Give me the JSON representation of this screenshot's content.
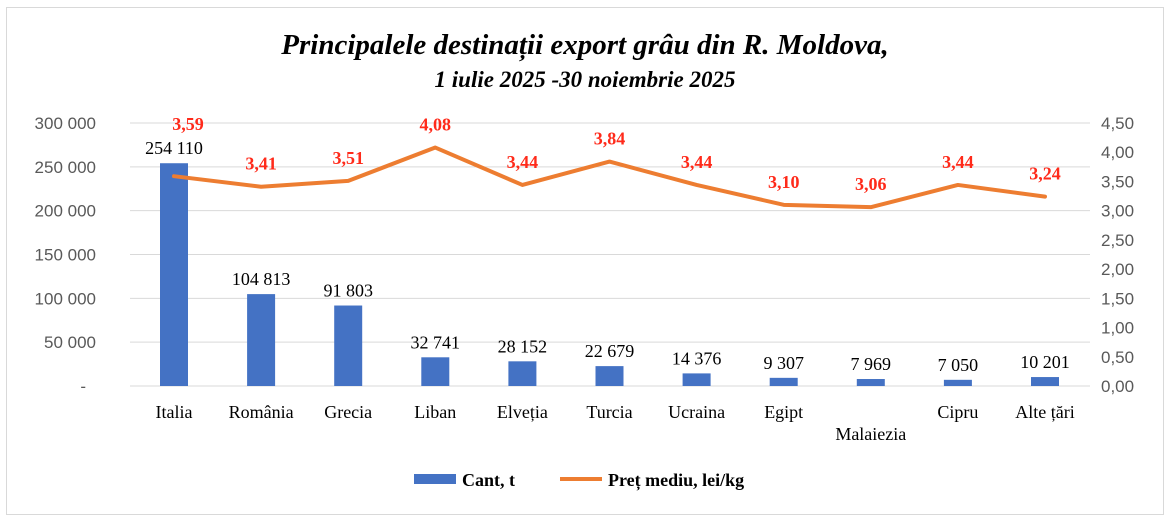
{
  "chart_data": {
    "type": "bar+line",
    "title": "Principalele destinații export grâu din R. Moldova,",
    "subtitle": "1 iulie 2025 -30 noiembrie 2025",
    "categories": [
      "Italia",
      "România",
      "Grecia",
      "Liban",
      "Elveția",
      "Turcia",
      "Ucraina",
      "Egipt",
      "Malaiezia",
      "Cipru",
      "Alte țări"
    ],
    "series": [
      {
        "name": "Cant, t",
        "type": "bar",
        "axis": "left",
        "color": "#4472c4",
        "values": [
          254110,
          104813,
          91803,
          32741,
          28152,
          22679,
          14376,
          9307,
          7969,
          7050,
          10201
        ],
        "labels": [
          "254 110",
          "104 813",
          "91 803",
          "32 741",
          "28 152",
          "22 679",
          "14 376",
          "9 307",
          "7 969",
          "7 050",
          "10 201"
        ]
      },
      {
        "name": "Preț mediu, lei/kg",
        "type": "line",
        "axis": "right",
        "color": "#ed7d31",
        "values": [
          3.59,
          3.41,
          3.51,
          4.08,
          3.44,
          3.84,
          3.44,
          3.1,
          3.06,
          3.44,
          3.24
        ],
        "labels": [
          "3,59",
          "3,41",
          "3,51",
          "4,08",
          "3,44",
          "3,84",
          "3,44",
          "3,10",
          "3,06",
          "3,44",
          "3,24"
        ],
        "label_color": "#ff2a1a"
      }
    ],
    "y_left": {
      "min": 0,
      "max": 300000,
      "ticks": [
        "-",
        "50 000",
        "100 000",
        "150 000",
        "200 000",
        "250 000",
        "300 000"
      ]
    },
    "y_right": {
      "min": 0,
      "max": 4.5,
      "ticks": [
        "0,00",
        "0,50",
        "1,00",
        "1,50",
        "2,00",
        "2,50",
        "3,00",
        "3,50",
        "4,00",
        "4,50"
      ]
    },
    "grid": true,
    "legend": "bottom"
  }
}
